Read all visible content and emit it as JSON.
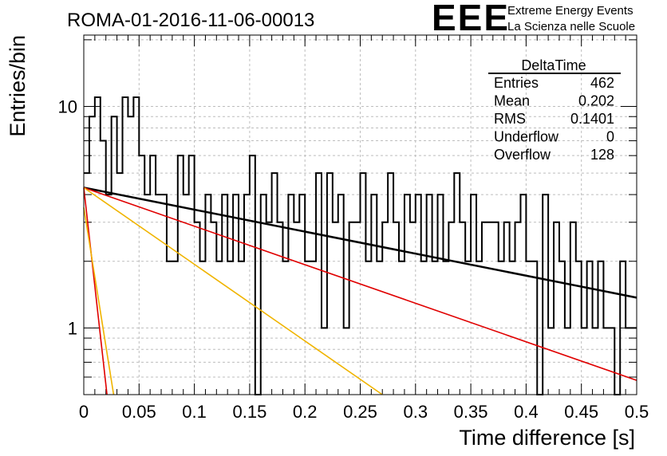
{
  "header": {
    "run_title": "ROMA-01-2016-11-06-00013",
    "logo_text": "EEE",
    "logo_line1": "Extreme Energy Events",
    "logo_line2": "La Scienza nelle Scuole",
    "logo_color": "#1515e6"
  },
  "stats_box": {
    "title": "DeltaTime",
    "rows": [
      {
        "label": "Entries",
        "value": "462"
      },
      {
        "label": "Mean",
        "value": "0.202"
      },
      {
        "label": "RMS",
        "value": "0.1401"
      },
      {
        "label": "Underflow",
        "value": "0"
      },
      {
        "label": "Overflow",
        "value": "128"
      }
    ]
  },
  "chart_data": {
    "type": "histogram",
    "title": "ROMA-01-2016-11-06-00013",
    "xlabel": "Time difference [s]",
    "ylabel": "Entries/bin",
    "xlim": [
      0,
      0.5
    ],
    "ylim": [
      0.5,
      21
    ],
    "yscale": "log",
    "grid": true,
    "x_ticks": [
      "0",
      "0.05",
      "0.1",
      "0.15",
      "0.2",
      "0.25",
      "0.3",
      "0.35",
      "0.4",
      "0.45",
      "0.5"
    ],
    "x_tick_values": [
      0,
      0.05,
      0.1,
      0.15,
      0.2,
      0.25,
      0.3,
      0.35,
      0.4,
      0.45,
      0.5
    ],
    "y_ticks": [
      "1",
      "10"
    ],
    "y_tick_values": [
      1,
      10
    ],
    "bin_width": 0.005,
    "values": [
      9,
      7,
      11,
      9,
      11,
      8,
      6,
      7,
      9,
      7,
      7,
      11,
      6,
      6,
      5,
      4,
      4,
      6,
      4,
      8,
      4,
      3,
      4,
      6,
      6,
      6,
      8,
      7,
      7,
      3,
      3,
      3,
      4,
      6,
      5,
      4,
      5,
      5,
      4,
      2,
      2,
      2,
      5,
      5,
      4,
      4,
      7,
      7,
      2,
      1,
      1,
      4,
      1,
      5,
      5,
      1,
      3,
      3,
      1,
      4,
      1,
      6,
      3,
      3,
      3,
      2,
      1,
      3,
      6,
      6,
      1,
      1,
      5,
      3,
      5,
      1,
      2,
      3,
      2,
      2,
      4,
      3,
      4,
      1,
      1,
      4,
      1,
      3,
      4,
      6,
      4,
      4,
      5,
      4,
      1,
      3,
      3,
      3,
      2,
      2,
      3,
      6,
      2,
      2,
      2,
      3,
      3,
      2,
      1,
      3,
      5,
      4,
      5,
      3,
      3,
      1,
      2,
      3,
      4,
      4,
      2,
      3,
      1,
      4,
      1,
      4,
      3,
      3,
      1,
      1,
      0,
      2,
      4,
      4,
      4,
      3,
      3,
      3,
      1,
      2,
      3,
      3,
      1,
      0,
      2,
      2,
      1,
      5,
      2,
      4,
      1,
      3,
      4,
      2,
      4,
      1,
      1,
      3,
      2,
      1,
      2,
      2,
      4,
      3,
      2,
      3,
      3,
      3,
      2,
      3,
      3,
      1,
      1,
      1,
      1,
      1,
      2,
      2,
      2,
      2,
      2,
      3,
      3,
      2,
      2,
      2,
      2,
      3,
      1,
      2,
      3,
      3,
      4,
      2,
      2,
      2,
      1,
      3,
      3,
      1,
      2,
      2,
      2,
      3,
      1,
      1,
      2,
      2,
      1,
      1,
      2,
      1,
      1,
      3,
      1,
      1,
      1,
      2,
      2,
      2,
      2,
      1,
      2,
      2,
      1,
      2,
      2,
      1,
      2,
      1,
      3,
      2,
      1,
      2,
      1,
      0,
      1,
      1,
      2,
      2,
      2,
      1,
      2,
      2,
      2,
      2,
      2,
      2,
      1,
      1,
      1,
      2,
      2,
      2,
      2,
      1,
      1,
      1,
      1,
      1,
      2,
      2,
      1,
      1,
      2,
      1,
      1,
      1,
      1,
      1,
      2,
      1,
      2,
      1,
      1,
      0,
      1,
      1,
      1,
      1,
      0,
      2,
      1,
      1,
      1,
      1,
      1,
      2,
      1,
      1,
      1,
      1,
      1,
      1,
      1,
      1,
      1,
      2,
      1,
      1,
      0,
      0,
      1,
      1,
      0,
      1,
      1,
      1,
      1,
      1,
      1,
      1,
      1,
      1,
      1,
      1,
      1,
      1,
      1,
      1,
      1,
      1,
      1,
      1,
      2,
      2,
      1,
      1,
      1,
      1,
      1,
      1,
      1,
      0,
      1,
      1,
      1,
      1,
      1,
      1,
      1,
      1,
      1,
      1,
      1,
      1,
      1,
      1,
      1,
      0,
      1,
      1,
      1,
      1,
      0,
      1,
      1,
      1,
      1,
      1,
      1,
      1,
      1,
      1,
      1,
      1,
      1,
      1,
      0,
      1,
      1,
      1,
      1,
      1,
      1,
      1,
      0,
      1,
      1,
      1,
      1,
      1,
      1,
      1,
      0,
      0,
      1,
      0,
      1,
      1,
      1,
      1,
      1,
      1,
      1,
      1,
      0,
      1,
      1,
      1,
      0,
      1,
      1,
      1,
      1,
      1,
      1,
      1,
      1,
      1,
      0,
      1,
      1,
      1,
      1,
      1,
      1,
      1,
      0,
      1,
      1,
      1,
      1,
      1,
      1,
      1,
      1,
      1,
      1,
      1,
      1,
      1,
      1,
      1,
      0,
      1,
      1,
      1,
      1,
      1,
      1,
      1,
      1,
      1,
      0,
      1,
      1,
      1,
      1,
      1,
      1,
      1,
      1,
      1,
      1,
      1,
      1,
      1,
      1,
      1,
      1,
      1,
      1,
      1,
      1,
      0,
      1,
      1,
      0,
      1,
      1,
      1,
      1,
      1
    ],
    "series": [
      {
        "kind": "histogram",
        "color": "#000000",
        "bins": [
          [
            0,
            0.005,
            5
          ],
          [
            0.005,
            0.01,
            9
          ],
          [
            0.01,
            0.015,
            11
          ],
          [
            0.015,
            0.02,
            7
          ],
          [
            0.02,
            0.025,
            4
          ],
          [
            0.025,
            0.03,
            9
          ],
          [
            0.03,
            0.035,
            5
          ],
          [
            0.035,
            0.04,
            11
          ],
          [
            0.04,
            0.045,
            9
          ],
          [
            0.045,
            0.05,
            11
          ],
          [
            0.05,
            0.055,
            6
          ],
          [
            0.055,
            0.06,
            4
          ],
          [
            0.06,
            0.065,
            6
          ],
          [
            0.065,
            0.07,
            4
          ],
          [
            0.07,
            0.075,
            4
          ],
          [
            0.075,
            0.08,
            2
          ],
          [
            0.08,
            0.085,
            2
          ],
          [
            0.085,
            0.09,
            6
          ],
          [
            0.09,
            0.095,
            4
          ],
          [
            0.095,
            0.1,
            6
          ],
          [
            0.1,
            0.105,
            3
          ],
          [
            0.105,
            0.11,
            2
          ],
          [
            0.11,
            0.115,
            4
          ],
          [
            0.115,
            0.12,
            3
          ],
          [
            0.12,
            0.125,
            2
          ],
          [
            0.125,
            0.13,
            4
          ],
          [
            0.13,
            0.135,
            2
          ],
          [
            0.135,
            0.14,
            4
          ],
          [
            0.14,
            0.145,
            2
          ],
          [
            0.145,
            0.15,
            4
          ],
          [
            0.15,
            0.155,
            6
          ],
          [
            0.155,
            0.16,
            0.5
          ],
          [
            0.16,
            0.165,
            4
          ],
          [
            0.165,
            0.17,
            3
          ],
          [
            0.17,
            0.175,
            5
          ],
          [
            0.175,
            0.18,
            3
          ],
          [
            0.18,
            0.185,
            2
          ],
          [
            0.185,
            0.19,
            4
          ],
          [
            0.19,
            0.195,
            3
          ],
          [
            0.195,
            0.2,
            4
          ],
          [
            0.2,
            0.205,
            2
          ],
          [
            0.205,
            0.21,
            2
          ],
          [
            0.21,
            0.215,
            5
          ],
          [
            0.215,
            0.22,
            1
          ],
          [
            0.22,
            0.225,
            5
          ],
          [
            0.225,
            0.23,
            3
          ],
          [
            0.23,
            0.235,
            4
          ],
          [
            0.235,
            0.24,
            1
          ],
          [
            0.24,
            0.245,
            3
          ],
          [
            0.245,
            0.25,
            3
          ],
          [
            0.25,
            0.255,
            5
          ],
          [
            0.255,
            0.26,
            2
          ],
          [
            0.26,
            0.265,
            4
          ],
          [
            0.265,
            0.27,
            2
          ],
          [
            0.27,
            0.275,
            3
          ],
          [
            0.275,
            0.28,
            5
          ],
          [
            0.28,
            0.285,
            3
          ],
          [
            0.285,
            0.29,
            2
          ],
          [
            0.29,
            0.295,
            4
          ],
          [
            0.295,
            0.3,
            3
          ],
          [
            0.3,
            0.305,
            4
          ],
          [
            0.305,
            0.31,
            2
          ],
          [
            0.31,
            0.315,
            4
          ],
          [
            0.315,
            0.32,
            2
          ],
          [
            0.32,
            0.325,
            4
          ],
          [
            0.325,
            0.33,
            2
          ],
          [
            0.33,
            0.335,
            3
          ],
          [
            0.335,
            0.34,
            5
          ],
          [
            0.34,
            0.345,
            3
          ],
          [
            0.345,
            0.35,
            2
          ],
          [
            0.35,
            0.355,
            4
          ],
          [
            0.355,
            0.36,
            2
          ],
          [
            0.36,
            0.365,
            3
          ],
          [
            0.365,
            0.37,
            3
          ],
          [
            0.37,
            0.375,
            3
          ],
          [
            0.375,
            0.38,
            2
          ],
          [
            0.38,
            0.385,
            3
          ],
          [
            0.385,
            0.39,
            2
          ],
          [
            0.39,
            0.395,
            3
          ],
          [
            0.395,
            0.4,
            4
          ],
          [
            0.4,
            0.405,
            2
          ],
          [
            0.405,
            0.41,
            2
          ],
          [
            0.41,
            0.415,
            0.5
          ],
          [
            0.415,
            0.42,
            4
          ],
          [
            0.42,
            0.425,
            1
          ],
          [
            0.425,
            0.43,
            3
          ],
          [
            0.43,
            0.435,
            2
          ],
          [
            0.435,
            0.44,
            1
          ],
          [
            0.44,
            0.445,
            3
          ],
          [
            0.445,
            0.45,
            2
          ],
          [
            0.45,
            0.455,
            1
          ],
          [
            0.455,
            0.46,
            2
          ],
          [
            0.46,
            0.465,
            1
          ],
          [
            0.465,
            0.47,
            2
          ],
          [
            0.47,
            0.475,
            1
          ],
          [
            0.475,
            0.48,
            1
          ],
          [
            0.48,
            0.485,
            0.5
          ],
          [
            0.485,
            0.49,
            2
          ],
          [
            0.49,
            0.495,
            1
          ],
          [
            0.495,
            0.5,
            1
          ]
        ]
      },
      {
        "kind": "line",
        "color": "#000000",
        "width": 2.5,
        "points": [
          [
            0,
            4.3
          ],
          [
            0.5,
            1.37
          ]
        ]
      },
      {
        "kind": "line",
        "color": "#e00000",
        "width": 1.6,
        "points": [
          [
            0,
            4.3
          ],
          [
            0.5,
            0.58
          ]
        ]
      },
      {
        "kind": "line",
        "color": "#f0b400",
        "width": 1.6,
        "points": [
          [
            0,
            4.3
          ],
          [
            0.27,
            0.5
          ]
        ]
      },
      {
        "kind": "line",
        "color": "#e00000",
        "width": 1.6,
        "points": [
          [
            0,
            4.3
          ],
          [
            0.021,
            0.5
          ]
        ]
      },
      {
        "kind": "line",
        "color": "#f0b400",
        "width": 1.6,
        "points": [
          [
            0,
            3.5
          ],
          [
            0.027,
            0.5
          ]
        ]
      }
    ]
  }
}
